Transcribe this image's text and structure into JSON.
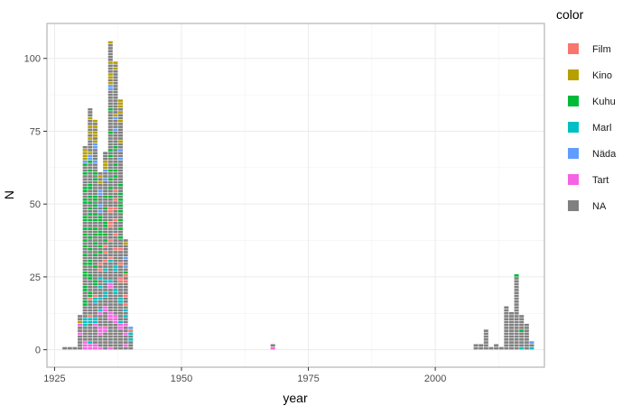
{
  "chart_data": {
    "type": "bar",
    "stacked": true,
    "style": "waffle-tiles",
    "xlabel": "year",
    "ylabel": "N",
    "xlim": [
      1923.5,
      2021.5
    ],
    "ylim": [
      -6,
      112
    ],
    "xticks": [
      1925,
      1950,
      1975,
      2000
    ],
    "yticks": [
      0,
      25,
      50,
      75,
      100
    ],
    "grid": true,
    "legend": {
      "title": "color",
      "position": "right"
    },
    "series": [
      {
        "name": "Film",
        "color": "#F8766D"
      },
      {
        "name": "Kino",
        "color": "#B79F00"
      },
      {
        "name": "Kuhu",
        "color": "#00BA38"
      },
      {
        "name": "Marl",
        "color": "#00BFC4"
      },
      {
        "name": "Näda",
        "color": "#619CFF"
      },
      {
        "name": "Tart",
        "color": "#F564E3"
      },
      {
        "name": "NA",
        "color": "#808080"
      }
    ],
    "x": [
      1927,
      1928,
      1929,
      1930,
      1931,
      1932,
      1933,
      1934,
      1935,
      1936,
      1937,
      1938,
      1939,
      1940,
      1968,
      2008,
      2009,
      2010,
      2011,
      2012,
      2013,
      2014,
      2015,
      2016,
      2017,
      2018,
      2019
    ],
    "counts": {
      "Film": [
        0,
        0,
        0,
        0,
        0,
        2,
        1,
        2,
        3,
        6,
        6,
        4,
        4,
        1,
        0,
        0,
        0,
        0,
        0,
        0,
        0,
        0,
        0,
        0,
        0,
        0,
        0
      ],
      "Kino": [
        0,
        0,
        0,
        1,
        4,
        5,
        5,
        2,
        3,
        5,
        3,
        6,
        1,
        0,
        0,
        0,
        0,
        0,
        0,
        0,
        0,
        0,
        0,
        0,
        0,
        0,
        0
      ],
      "Kuhu": [
        0,
        0,
        0,
        0,
        20,
        18,
        14,
        6,
        6,
        8,
        4,
        8,
        1,
        0,
        0,
        0,
        0,
        0,
        0,
        0,
        0,
        0,
        0,
        1,
        1,
        0,
        0
      ],
      "Marl": [
        0,
        0,
        0,
        0,
        3,
        3,
        4,
        4,
        4,
        2,
        4,
        3,
        2,
        2,
        0,
        0,
        0,
        0,
        0,
        0,
        0,
        0,
        0,
        0,
        1,
        0,
        1
      ],
      "Näda": [
        0,
        0,
        0,
        0,
        1,
        2,
        3,
        4,
        2,
        2,
        2,
        2,
        2,
        1,
        0,
        0,
        0,
        0,
        0,
        0,
        0,
        0,
        0,
        0,
        0,
        0,
        1
      ],
      "Tart": [
        0,
        0,
        0,
        2,
        3,
        2,
        3,
        5,
        4,
        6,
        3,
        2,
        3,
        0,
        1,
        0,
        0,
        0,
        0,
        0,
        0,
        0,
        0,
        0,
        0,
        0,
        0
      ],
      "NA": [
        1,
        1,
        1,
        9,
        39,
        51,
        49,
        38,
        46,
        77,
        77,
        61,
        25,
        4,
        1,
        2,
        2,
        7,
        1,
        2,
        1,
        15,
        13,
        25,
        10,
        9,
        1
      ]
    }
  }
}
